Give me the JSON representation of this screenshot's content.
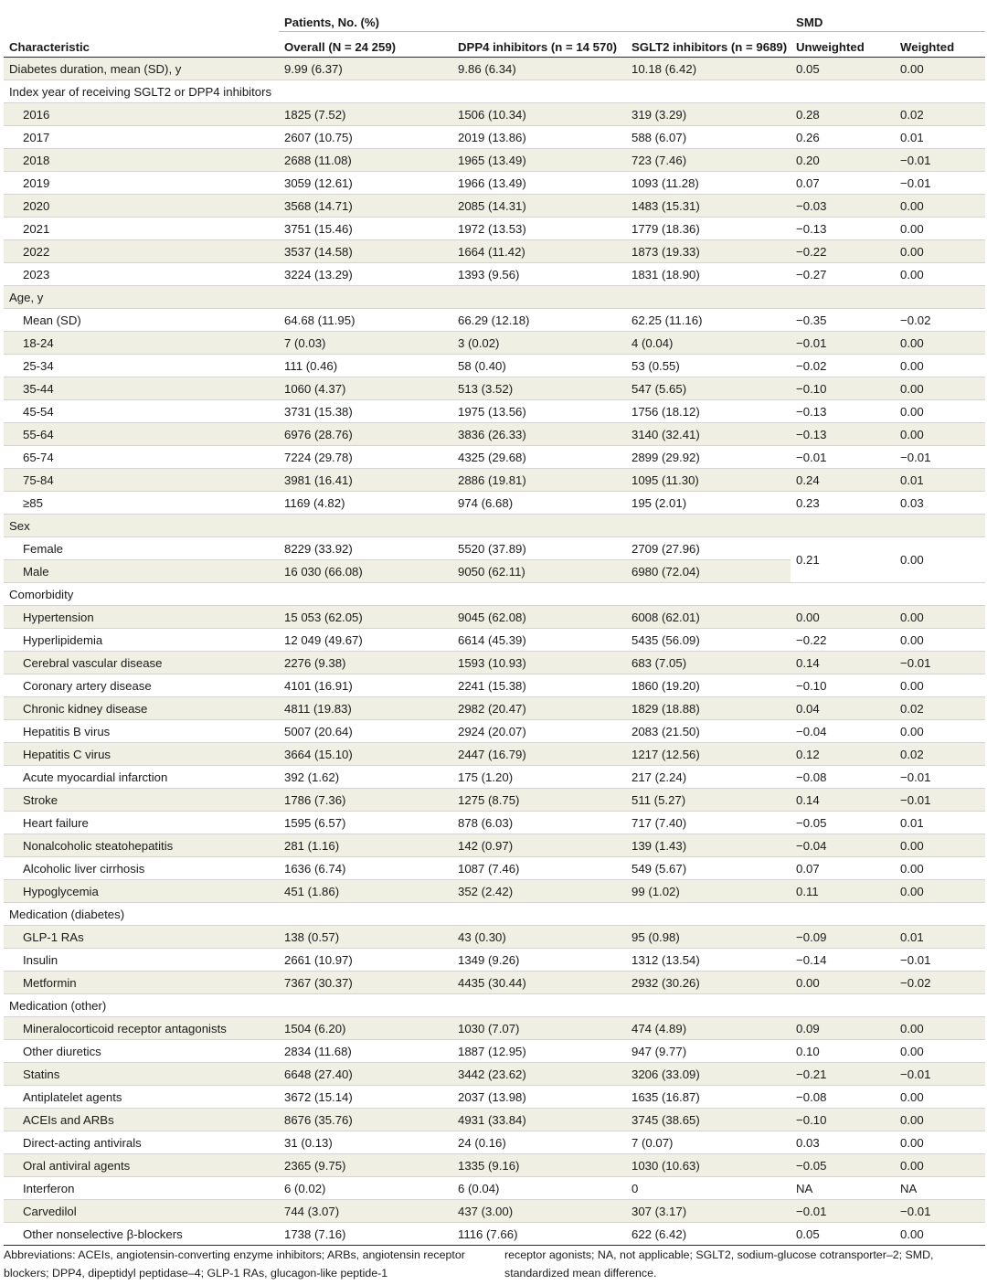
{
  "header": {
    "group_label": "Patients, No. (%)",
    "smd_label": "SMD",
    "characteristic": "Characteristic",
    "overall": "Overall (N = 24 259)",
    "dpp4": "DPP4 inhibitors (n = 14 570)",
    "sglt2": "SGLT2 inhibitors (n = 9689)",
    "unweighted": "Unweighted",
    "weighted": "Weighted"
  },
  "rows": {
    "r0": {
      "c": "Diabetes duration, mean (SD), y",
      "o": "9.99 (6.37)",
      "d": "9.86 (6.34)",
      "s": "10.18 (6.42)",
      "u": "0.05",
      "w": "0.00"
    },
    "r1": {
      "c": "Index year of receiving SGLT2 or DPP4 inhibitors"
    },
    "r2": {
      "c": "2016",
      "o": "1825 (7.52)",
      "d": "1506 (10.34)",
      "s": "319 (3.29)",
      "u": "0.28",
      "w": "0.02"
    },
    "r3": {
      "c": "2017",
      "o": "2607 (10.75)",
      "d": "2019 (13.86)",
      "s": "588 (6.07)",
      "u": "0.26",
      "w": "0.01"
    },
    "r4": {
      "c": "2018",
      "o": "2688 (11.08)",
      "d": "1965 (13.49)",
      "s": "723 (7.46)",
      "u": "0.20",
      "w": "−0.01"
    },
    "r5": {
      "c": "2019",
      "o": "3059 (12.61)",
      "d": "1966 (13.49)",
      "s": "1093 (11.28)",
      "u": "0.07",
      "w": "−0.01"
    },
    "r6": {
      "c": "2020",
      "o": "3568 (14.71)",
      "d": "2085 (14.31)",
      "s": "1483 (15.31)",
      "u": "−0.03",
      "w": "0.00"
    },
    "r7": {
      "c": "2021",
      "o": "3751 (15.46)",
      "d": "1972 (13.53)",
      "s": "1779 (18.36)",
      "u": "−0.13",
      "w": "0.00"
    },
    "r8": {
      "c": "2022",
      "o": "3537 (14.58)",
      "d": "1664 (11.42)",
      "s": "1873 (19.33)",
      "u": "−0.22",
      "w": "0.00"
    },
    "r9": {
      "c": "2023",
      "o": "3224 (13.29)",
      "d": "1393 (9.56)",
      "s": "1831 (18.90)",
      "u": "−0.27",
      "w": "0.00"
    },
    "r10": {
      "c": "Age, y"
    },
    "r11": {
      "c": "Mean (SD)",
      "o": "64.68 (11.95)",
      "d": "66.29 (12.18)",
      "s": "62.25 (11.16)",
      "u": "−0.35",
      "w": "−0.02"
    },
    "r12": {
      "c": "18-24",
      "o": "7 (0.03)",
      "d": "3 (0.02)",
      "s": "4 (0.04)",
      "u": "−0.01",
      "w": "0.00"
    },
    "r13": {
      "c": "25-34",
      "o": "111 (0.46)",
      "d": "58 (0.40)",
      "s": "53 (0.55)",
      "u": "−0.02",
      "w": "0.00"
    },
    "r14": {
      "c": "35-44",
      "o": "1060 (4.37)",
      "d": "513 (3.52)",
      "s": "547 (5.65)",
      "u": "−0.10",
      "w": "0.00"
    },
    "r15": {
      "c": "45-54",
      "o": "3731 (15.38)",
      "d": "1975 (13.56)",
      "s": "1756 (18.12)",
      "u": "−0.13",
      "w": "0.00"
    },
    "r16": {
      "c": "55-64",
      "o": "6976 (28.76)",
      "d": "3836 (26.33)",
      "s": "3140 (32.41)",
      "u": "−0.13",
      "w": "0.00"
    },
    "r17": {
      "c": "65-74",
      "o": "7224 (29.78)",
      "d": "4325 (29.68)",
      "s": "2899 (29.92)",
      "u": "−0.01",
      "w": "−0.01"
    },
    "r18": {
      "c": "75-84",
      "o": "3981 (16.41)",
      "d": "2886 (19.81)",
      "s": "1095 (11.30)",
      "u": "0.24",
      "w": "0.01"
    },
    "r19": {
      "c": "≥85",
      "o": "1169 (4.82)",
      "d": "974 (6.68)",
      "s": "195 (2.01)",
      "u": "0.23",
      "w": "0.03"
    },
    "r20": {
      "c": "Sex"
    },
    "r21": {
      "c": "Female",
      "o": "8229 (33.92)",
      "d": "5520 (37.89)",
      "s": "2709 (27.96)",
      "u": "0.21",
      "w": "0.00"
    },
    "r22": {
      "c": "Male",
      "o": "16 030 (66.08)",
      "d": "9050 (62.11)",
      "s": "6980 (72.04)"
    },
    "r23": {
      "c": "Comorbidity"
    },
    "r24": {
      "c": "Hypertension",
      "o": "15 053 (62.05)",
      "d": "9045 (62.08)",
      "s": "6008 (62.01)",
      "u": "0.00",
      "w": "0.00"
    },
    "r25": {
      "c": "Hyperlipidemia",
      "o": "12 049 (49.67)",
      "d": "6614 (45.39)",
      "s": "5435 (56.09)",
      "u": "−0.22",
      "w": "0.00"
    },
    "r26": {
      "c": "Cerebral vascular disease",
      "o": "2276 (9.38)",
      "d": "1593 (10.93)",
      "s": "683 (7.05)",
      "u": "0.14",
      "w": "−0.01"
    },
    "r27": {
      "c": "Coronary artery disease",
      "o": "4101 (16.91)",
      "d": "2241 (15.38)",
      "s": "1860 (19.20)",
      "u": "−0.10",
      "w": "0.00"
    },
    "r28": {
      "c": "Chronic kidney disease",
      "o": "4811 (19.83)",
      "d": "2982 (20.47)",
      "s": "1829 (18.88)",
      "u": "0.04",
      "w": "0.02"
    },
    "r29": {
      "c": "Hepatitis B virus",
      "o": "5007 (20.64)",
      "d": "2924 (20.07)",
      "s": "2083 (21.50)",
      "u": "−0.04",
      "w": "0.00"
    },
    "r30": {
      "c": "Hepatitis C virus",
      "o": "3664 (15.10)",
      "d": "2447 (16.79)",
      "s": "1217 (12.56)",
      "u": "0.12",
      "w": "0.02"
    },
    "r31": {
      "c": "Acute myocardial infarction",
      "o": "392 (1.62)",
      "d": "175 (1.20)",
      "s": "217 (2.24)",
      "u": "−0.08",
      "w": "−0.01"
    },
    "r32": {
      "c": "Stroke",
      "o": "1786 (7.36)",
      "d": "1275 (8.75)",
      "s": "511 (5.27)",
      "u": "0.14",
      "w": "−0.01"
    },
    "r33": {
      "c": "Heart failure",
      "o": "1595 (6.57)",
      "d": "878 (6.03)",
      "s": "717 (7.40)",
      "u": "−0.05",
      "w": "0.01"
    },
    "r34": {
      "c": "Nonalcoholic steatohepatitis",
      "o": "281 (1.16)",
      "d": "142 (0.97)",
      "s": "139 (1.43)",
      "u": "−0.04",
      "w": "0.00"
    },
    "r35": {
      "c": "Alcoholic liver cirrhosis",
      "o": "1636 (6.74)",
      "d": "1087 (7.46)",
      "s": "549 (5.67)",
      "u": "0.07",
      "w": "0.00"
    },
    "r36": {
      "c": "Hypoglycemia",
      "o": "451 (1.86)",
      "d": "352 (2.42)",
      "s": "99 (1.02)",
      "u": "0.11",
      "w": "0.00"
    },
    "r37": {
      "c": "Medication (diabetes)"
    },
    "r38": {
      "c": "GLP-1 RAs",
      "o": "138 (0.57)",
      "d": "43 (0.30)",
      "s": "95 (0.98)",
      "u": "−0.09",
      "w": "0.01"
    },
    "r39": {
      "c": "Insulin",
      "o": "2661 (10.97)",
      "d": "1349 (9.26)",
      "s": "1312 (13.54)",
      "u": "−0.14",
      "w": "−0.01"
    },
    "r40": {
      "c": "Metformin",
      "o": "7367 (30.37)",
      "d": "4435 (30.44)",
      "s": "2932 (30.26)",
      "u": "0.00",
      "w": "−0.02"
    },
    "r41": {
      "c": "Medication (other)"
    },
    "r42": {
      "c": "Mineralocorticoid receptor antagonists",
      "o": "1504 (6.20)",
      "d": "1030 (7.07)",
      "s": "474 (4.89)",
      "u": "0.09",
      "w": "0.00"
    },
    "r43": {
      "c": "Other diuretics",
      "o": "2834 (11.68)",
      "d": "1887 (12.95)",
      "s": "947 (9.77)",
      "u": "0.10",
      "w": "0.00"
    },
    "r44": {
      "c": "Statins",
      "o": "6648 (27.40)",
      "d": "3442 (23.62)",
      "s": "3206 (33.09)",
      "u": "−0.21",
      "w": "−0.01"
    },
    "r45": {
      "c": "Antiplatelet agents",
      "o": "3672 (15.14)",
      "d": "2037 (13.98)",
      "s": "1635 (16.87)",
      "u": "−0.08",
      "w": "0.00"
    },
    "r46": {
      "c": "ACEIs and ARBs",
      "o": "8676 (35.76)",
      "d": "4931 (33.84)",
      "s": "3745 (38.65)",
      "u": "−0.10",
      "w": "0.00"
    },
    "r47": {
      "c": "Direct-acting antivirals",
      "o": "31 (0.13)",
      "d": "24 (0.16)",
      "s": "7 (0.07)",
      "u": "0.03",
      "w": "0.00"
    },
    "r48": {
      "c": "Oral antiviral agents",
      "o": "2365 (9.75)",
      "d": "1335 (9.16)",
      "s": "1030 (10.63)",
      "u": "−0.05",
      "w": "0.00"
    },
    "r49": {
      "c": "Interferon",
      "o": "6 (0.02)",
      "d": "6 (0.04)",
      "s": "0",
      "u": "NA",
      "w": "NA"
    },
    "r50": {
      "c": "Carvedilol",
      "o": "744 (3.07)",
      "d": "437 (3.00)",
      "s": "307 (3.17)",
      "u": "−0.01",
      "w": "−0.01"
    },
    "r51": {
      "c": "Other nonselective β-blockers",
      "o": "1738 (7.16)",
      "d": "1116 (7.66)",
      "s": "622 (6.42)",
      "u": "0.05",
      "w": "0.00"
    }
  },
  "footnote": {
    "left": "Abbreviations: ACEIs, angiotensin-converting enzyme inhibitors; ARBs, angiotensin receptor blockers; DPP4, dipeptidyl peptidase–4; GLP-1 RAs, glucagon-like peptide-1",
    "right": "receptor agonists; NA, not applicable; SGLT2, sodium-glucose cotransporter–2; SMD, standardized mean difference."
  }
}
